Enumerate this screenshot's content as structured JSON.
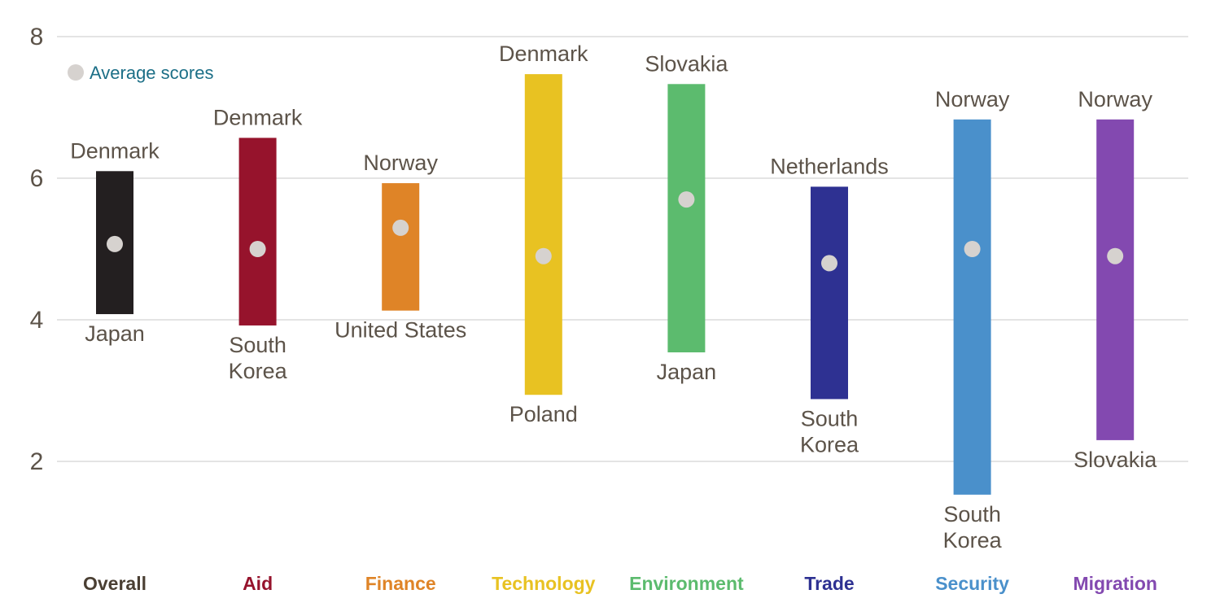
{
  "chart_data": {
    "type": "range",
    "ylim": [
      0,
      8
    ],
    "yticks": [
      2,
      4,
      6,
      8
    ],
    "grid": true,
    "legend": {
      "label": "Average scores",
      "placement": "top-left",
      "marker_color": "#d6d2cf",
      "text_color": "#1c6f87"
    },
    "categories": [
      {
        "name": "Overall",
        "color": "#231f20",
        "label_color": "#4a3f33",
        "high": 6.1,
        "low": 4.08,
        "high_country": "Denmark",
        "low_country": "Japan",
        "average": 5.07
      },
      {
        "name": "Aid",
        "color": "#96132c",
        "label_color": "#96132c",
        "high": 6.57,
        "low": 3.92,
        "high_country": "Denmark",
        "low_country": "South Korea",
        "average": 5.0
      },
      {
        "name": "Finance",
        "color": "#df8427",
        "label_color": "#df8427",
        "high": 5.93,
        "low": 4.13,
        "high_country": "Norway",
        "low_country": "United States",
        "average": 5.3
      },
      {
        "name": "Technology",
        "color": "#e8c222",
        "label_color": "#e8c222",
        "high": 7.47,
        "low": 2.94,
        "high_country": "Denmark",
        "low_country": "Poland",
        "average": 4.9
      },
      {
        "name": "Environment",
        "color": "#5cbb6e",
        "label_color": "#5cbb6e",
        "high": 7.33,
        "low": 3.54,
        "high_country": "Slovakia",
        "low_country": "Japan",
        "average": 5.7
      },
      {
        "name": "Trade",
        "color": "#2e3192",
        "label_color": "#2e3192",
        "high": 5.88,
        "low": 2.88,
        "high_country": "Netherlands",
        "low_country": "South Korea",
        "average": 4.8
      },
      {
        "name": "Security",
        "color": "#4a90cb",
        "label_color": "#4a90cb",
        "high": 6.83,
        "low": 1.53,
        "high_country": "Norway",
        "low_country": "South Korea",
        "average": 5.0
      },
      {
        "name": "Migration",
        "color": "#8349b0",
        "label_color": "#8349b0",
        "high": 6.83,
        "low": 2.3,
        "high_country": "Norway",
        "low_country": "Slovakia",
        "average": 4.9
      }
    ]
  }
}
